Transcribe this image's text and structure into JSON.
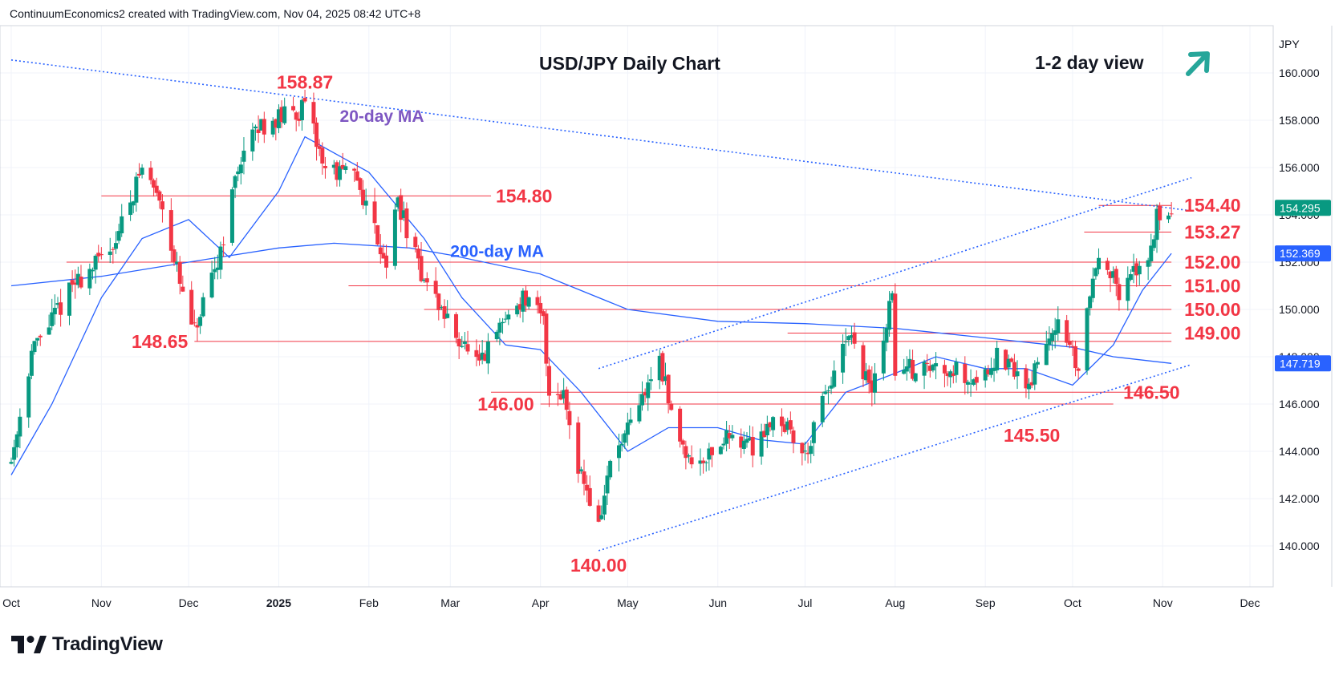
{
  "attribution": "ContinuumEconomics2 created with TradingView.com, Nov 04, 2025 08:42 UTC+8",
  "brand": "TradingView",
  "chart_data": {
    "type": "candlestick",
    "title": "USD/JPY Daily Chart",
    "view_label": "1-2 day view",
    "view_direction": "up",
    "currency": "JPY",
    "ylim": [
      138.0,
      162.0
    ],
    "y_ticks": [
      "140.000",
      "142.000",
      "144.000",
      "146.000",
      "148.000",
      "150.000",
      "152.000",
      "154.000",
      "156.000",
      "158.000",
      "160.000"
    ],
    "x_ticks": [
      {
        "label": "Oct",
        "date": "2024-10-01",
        "bold": false
      },
      {
        "label": "Nov",
        "date": "2024-11-01",
        "bold": false
      },
      {
        "label": "Dec",
        "date": "2024-12-01",
        "bold": false
      },
      {
        "label": "2025",
        "date": "2025-01-01",
        "bold": true
      },
      {
        "label": "Feb",
        "date": "2025-02-01",
        "bold": false
      },
      {
        "label": "Mar",
        "date": "2025-03-01",
        "bold": false
      },
      {
        "label": "Apr",
        "date": "2025-04-01",
        "bold": false
      },
      {
        "label": "May",
        "date": "2025-05-01",
        "bold": false
      },
      {
        "label": "Jun",
        "date": "2025-06-01",
        "bold": false
      },
      {
        "label": "Jul",
        "date": "2025-07-01",
        "bold": false
      },
      {
        "label": "Aug",
        "date": "2025-08-01",
        "bold": false
      },
      {
        "label": "Sep",
        "date": "2025-09-01",
        "bold": false
      },
      {
        "label": "Oct",
        "date": "2025-10-01",
        "bold": false
      },
      {
        "label": "Nov",
        "date": "2025-11-01",
        "bold": false
      },
      {
        "label": "Dec",
        "date": "2025-12-01",
        "bold": false
      }
    ],
    "date_range": [
      "2024-10-01",
      "2025-11-04"
    ],
    "price_anchors": [
      [
        "2024-10-01",
        143.6
      ],
      [
        "2024-10-08",
        148.2
      ],
      [
        "2024-10-22",
        151.0
      ],
      [
        "2024-10-31",
        152.0
      ],
      [
        "2024-11-06",
        153.0
      ],
      [
        "2024-11-15",
        156.0
      ],
      [
        "2024-11-22",
        154.5
      ],
      [
        "2024-11-29",
        150.5
      ],
      [
        "2024-12-03",
        149.0
      ],
      [
        "2024-12-10",
        151.5
      ],
      [
        "2024-12-19",
        156.5
      ],
      [
        "2024-12-26",
        157.8
      ],
      [
        "2025-01-10",
        158.5
      ],
      [
        "2025-01-17",
        156.0
      ],
      [
        "2025-01-28",
        155.5
      ],
      [
        "2025-02-07",
        152.0
      ],
      [
        "2025-02-11",
        154.6
      ],
      [
        "2025-02-18",
        151.8
      ],
      [
        "2025-02-28",
        149.5
      ],
      [
        "2025-03-11",
        147.5
      ],
      [
        "2025-03-19",
        149.5
      ],
      [
        "2025-03-26",
        150.5
      ],
      [
        "2025-04-02",
        149.5
      ],
      [
        "2025-04-04",
        146.5
      ],
      [
        "2025-04-09",
        146.5
      ],
      [
        "2025-04-14",
        143.5
      ],
      [
        "2025-04-21",
        140.8
      ],
      [
        "2025-04-25",
        143.5
      ],
      [
        "2025-05-02",
        145.0
      ],
      [
        "2025-05-12",
        148.0
      ],
      [
        "2025-05-16",
        145.5
      ],
      [
        "2025-05-23",
        143.5
      ],
      [
        "2025-05-30",
        144.0
      ],
      [
        "2025-06-06",
        144.8
      ],
      [
        "2025-06-13",
        144.2
      ],
      [
        "2025-06-20",
        145.5
      ],
      [
        "2025-06-25",
        145.0
      ],
      [
        "2025-07-01",
        143.8
      ],
      [
        "2025-07-07",
        146.0
      ],
      [
        "2025-07-16",
        148.8
      ],
      [
        "2025-07-24",
        146.5
      ],
      [
        "2025-07-31",
        150.6
      ],
      [
        "2025-08-01",
        147.5
      ],
      [
        "2025-08-08",
        147.5
      ],
      [
        "2025-08-19",
        147.6
      ],
      [
        "2025-08-29",
        147.0
      ],
      [
        "2025-09-05",
        148.0
      ],
      [
        "2025-09-16",
        146.8
      ],
      [
        "2025-09-25",
        149.5
      ],
      [
        "2025-10-01",
        148.0
      ],
      [
        "2025-10-03",
        147.5
      ],
      [
        "2025-10-06",
        150.0
      ],
      [
        "2025-10-10",
        152.5
      ],
      [
        "2025-10-13",
        152.0
      ],
      [
        "2025-10-17",
        150.5
      ],
      [
        "2025-10-22",
        151.5
      ],
      [
        "2025-10-28",
        152.5
      ],
      [
        "2025-10-30",
        154.0
      ],
      [
        "2025-11-04",
        154.3
      ]
    ],
    "moving_averages": [
      {
        "name": "20-day MA",
        "color": "#2962ff",
        "points": [
          [
            "2024-10-01",
            143.0
          ],
          [
            "2024-10-15",
            146.0
          ],
          [
            "2024-11-01",
            150.5
          ],
          [
            "2024-11-15",
            153.0
          ],
          [
            "2024-12-01",
            153.8
          ],
          [
            "2024-12-15",
            152.2
          ],
          [
            "2025-01-01",
            155.0
          ],
          [
            "2025-01-10",
            157.3
          ],
          [
            "2025-02-01",
            155.8
          ],
          [
            "2025-02-20",
            153.0
          ],
          [
            "2025-03-05",
            150.5
          ],
          [
            "2025-03-20",
            148.5
          ],
          [
            "2025-04-01",
            148.3
          ],
          [
            "2025-04-15",
            146.5
          ],
          [
            "2025-05-01",
            144.0
          ],
          [
            "2025-05-15",
            145.0
          ],
          [
            "2025-06-01",
            145.0
          ],
          [
            "2025-06-15",
            144.5
          ],
          [
            "2025-07-01",
            144.3
          ],
          [
            "2025-07-15",
            146.5
          ],
          [
            "2025-08-01",
            147.3
          ],
          [
            "2025-08-15",
            148.0
          ],
          [
            "2025-09-01",
            147.5
          ],
          [
            "2025-09-15",
            147.5
          ],
          [
            "2025-10-01",
            146.8
          ],
          [
            "2025-10-15",
            148.5
          ],
          [
            "2025-10-25",
            150.8
          ],
          [
            "2025-11-04",
            152.37
          ]
        ]
      },
      {
        "name": "200-day MA",
        "color": "#2962ff",
        "points": [
          [
            "2024-10-01",
            151.0
          ],
          [
            "2024-11-01",
            151.4
          ],
          [
            "2024-12-01",
            152.0
          ],
          [
            "2025-01-01",
            152.6
          ],
          [
            "2025-01-20",
            152.8
          ],
          [
            "2025-02-15",
            152.6
          ],
          [
            "2025-03-01",
            152.3
          ],
          [
            "2025-04-01",
            151.5
          ],
          [
            "2025-05-01",
            150.0
          ],
          [
            "2025-06-01",
            149.5
          ],
          [
            "2025-07-01",
            149.4
          ],
          [
            "2025-08-01",
            149.2
          ],
          [
            "2025-09-01",
            148.8
          ],
          [
            "2025-10-01",
            148.4
          ],
          [
            "2025-10-15",
            148.0
          ],
          [
            "2025-11-04",
            147.72
          ]
        ]
      }
    ],
    "last_price": {
      "value": "154.295",
      "color": "#089981",
      "y": 154.295
    },
    "ma_value_tags": [
      {
        "value": "152.369",
        "color": "#2962ff",
        "y": 152.369
      },
      {
        "value": "147.719",
        "color": "#2962ff",
        "y": 147.719
      }
    ],
    "levels": [
      {
        "label": "154.80",
        "y": 154.8,
        "from": "2024-11-01",
        "to": "2025-03-15",
        "label_side": "right-outside"
      },
      {
        "label": "154.40",
        "y": 154.4,
        "from": "2025-10-10",
        "to": "2025-11-04",
        "label_side": "right-outside"
      },
      {
        "label": "153.27",
        "y": 153.27,
        "from": "2025-10-05",
        "to": "2025-11-04",
        "label_side": "right-outside"
      },
      {
        "label": "152.00",
        "y": 152.0,
        "from": "2024-10-20",
        "to": "2025-11-04",
        "label_side": "right-outside"
      },
      {
        "label": "151.00",
        "y": 151.0,
        "from": "2025-01-25",
        "to": "2025-11-04",
        "label_side": "right-outside"
      },
      {
        "label": "150.00",
        "y": 150.0,
        "from": "2025-02-20",
        "to": "2025-11-04",
        "label_side": "right-outside"
      },
      {
        "label": "149.00",
        "y": 149.0,
        "from": "2025-06-25",
        "to": "2025-11-04",
        "label_side": "right-outside"
      },
      {
        "label": "148.65",
        "y": 148.65,
        "from": "2024-12-03",
        "to": "2025-11-04",
        "label_side": "left-outside"
      },
      {
        "label": "146.50",
        "y": 146.5,
        "from": "2025-03-15",
        "to": "2025-11-04",
        "label_side": "right-outside"
      },
      {
        "label": "146.00",
        "y": 146.0,
        "from": "2025-04-01",
        "to": "2025-10-15",
        "label_side": "left-outside"
      }
    ],
    "trendlines": [
      {
        "name": "long-term resistance",
        "from": [
          "2024-10-01",
          160.55
        ],
        "to": [
          "2025-11-04",
          153.9
        ]
      },
      {
        "name": "channel resistance",
        "from": [
          "2025-04-21",
          147.5
        ],
        "to": [
          "2025-11-04",
          155.3
        ]
      },
      {
        "name": "channel support",
        "from": [
          "2025-04-21",
          139.8
        ],
        "to": [
          "2025-11-04",
          147.4
        ]
      }
    ],
    "annotations": [
      {
        "text": "158.87",
        "date": "2025-01-10",
        "y": 158.87,
        "pos": "above",
        "color": "#f23645"
      },
      {
        "text": "140.00",
        "date": "2025-04-21",
        "y": 140.0,
        "pos": "below",
        "color": "#f23645"
      },
      {
        "text": "145.50",
        "date": "2025-09-17",
        "y": 145.5,
        "pos": "below",
        "color": "#f23645"
      },
      {
        "text": "20-day MA",
        "date": "2025-01-22",
        "y": 158.2,
        "pos": "right",
        "color": "#7e57c2"
      },
      {
        "text": "200-day MA",
        "date": "2025-03-01",
        "y": 152.5,
        "pos": "right",
        "color": "#2962ff"
      }
    ],
    "colors": {
      "up": "#089981",
      "down": "#f23645",
      "level": "#f23645",
      "trend": "#2962ff",
      "arrow": "#26a69a"
    },
    "grid": true
  }
}
